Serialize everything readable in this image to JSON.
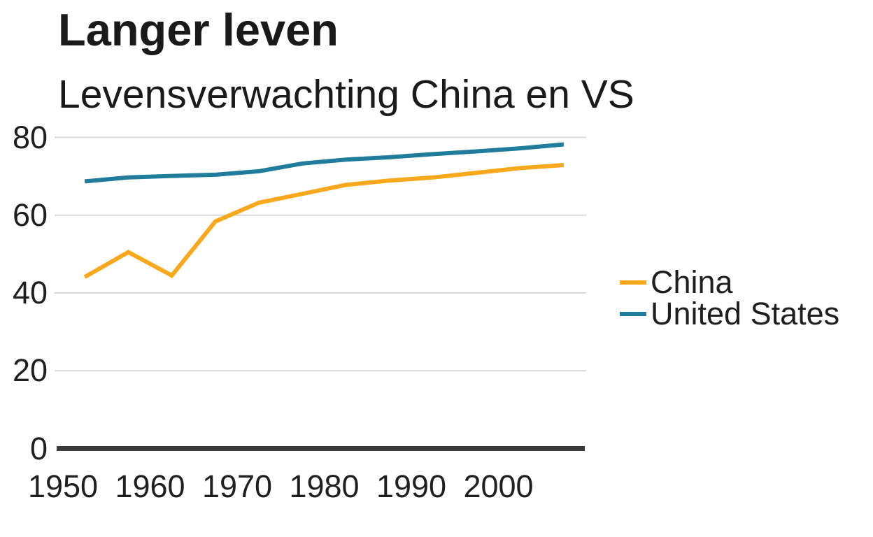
{
  "chart": {
    "title": "Langer leven",
    "subtitle": "Levensverwachting China en VS"
  },
  "chart_data": {
    "type": "line",
    "title": "Langer leven",
    "subtitle": "Levensverwachting China en VS",
    "x": [
      1952.5,
      1957.5,
      1962.5,
      1967.5,
      1972.5,
      1977.5,
      1982.5,
      1987.5,
      1992.5,
      1997.5,
      2002.5,
      2007.5
    ],
    "series": [
      {
        "name": "China",
        "color": "#F8A81D",
        "values": [
          44.1,
          50.5,
          44.5,
          58.4,
          63.2,
          65.5,
          67.8,
          68.9,
          69.7,
          70.9,
          72.1,
          72.9
        ]
      },
      {
        "name": "United States",
        "color": "#1F7C9B",
        "values": [
          68.7,
          69.7,
          70.1,
          70.4,
          71.3,
          73.3,
          74.3,
          74.9,
          75.7,
          76.4,
          77.2,
          78.2
        ]
      }
    ],
    "xlabel": "",
    "ylabel": "",
    "xticks": [
      1950,
      1960,
      1970,
      1980,
      1990,
      2000
    ],
    "yticks": [
      0,
      20,
      40,
      60,
      80
    ],
    "ylim": [
      0,
      84
    ],
    "xlim": [
      1949,
      2010
    ],
    "grid": "horizontal-only",
    "gridline_color": "#D9D9D9",
    "baseline_color": "#3A3A3A",
    "legend_position": "right-middle",
    "background": "#FFFFFF"
  }
}
